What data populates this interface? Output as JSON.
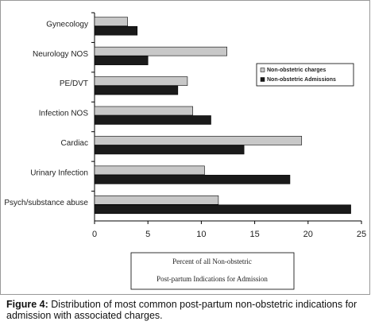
{
  "chart_data": {
    "type": "bar",
    "orientation": "horizontal",
    "categories": [
      "Gynecology",
      "Neurology NOS",
      "PE/DVT",
      "Infection NOS",
      "Cardiac",
      "Urinary Infection",
      "Psych/substance abuse"
    ],
    "series": [
      {
        "name": "Non-obstetric charges",
        "color": "#c8c8c8",
        "values": [
          3.1,
          12.4,
          8.7,
          9.2,
          19.4,
          10.3,
          11.6
        ]
      },
      {
        "name": "Non-obstetric Admissions",
        "color": "#1a1a1a",
        "values": [
          4.0,
          5.0,
          7.8,
          10.9,
          14.0,
          18.3,
          24.0
        ]
      }
    ],
    "xlim": [
      0,
      25
    ],
    "xticks": [
      0,
      5,
      10,
      15,
      20,
      25
    ],
    "xlabel": [
      "Percent of all Non-obstetric",
      "Post-partum Indications for Admission"
    ],
    "legend": "upper right",
    "grid": false
  },
  "caption": {
    "label": "Figure 4:",
    "text": "Distribution of most common post-partum non-obstetric indications for admission with associated charges."
  }
}
